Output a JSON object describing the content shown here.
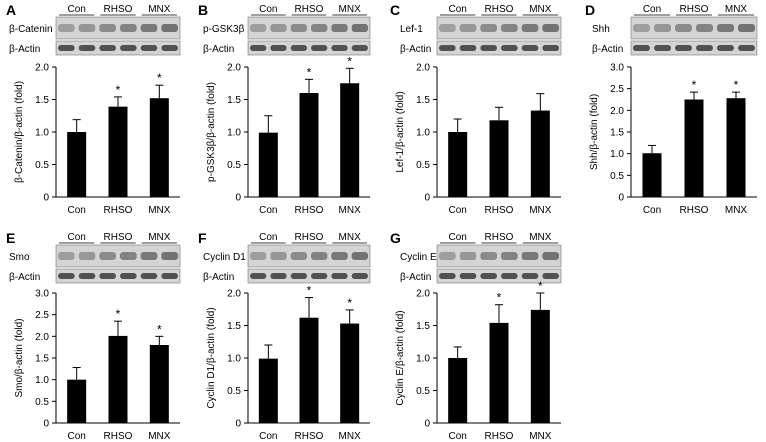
{
  "chart_data": [
    {
      "type": "bar",
      "panel_letter": "A",
      "blot_labels": [
        "β-Catenin",
        "β-Actin"
      ],
      "lane_groups": [
        "Con",
        "RHSO",
        "MNX"
      ],
      "categories": [
        "Con",
        "RHSO",
        "MNX"
      ],
      "values": [
        1.0,
        1.39,
        1.52
      ],
      "errors": [
        0.19,
        0.15,
        0.2
      ],
      "significance": [
        "",
        "*",
        "*"
      ],
      "ylabel": "β-Catenin/β-actin (fold)",
      "ylim": [
        0,
        2.0
      ],
      "yticks": [
        "0",
        "0.5",
        "1.0",
        "1.5",
        "2.0"
      ]
    },
    {
      "type": "bar",
      "panel_letter": "B",
      "blot_labels": [
        "p-GSK3β",
        "β-Actin"
      ],
      "lane_groups": [
        "Con",
        "RHSO",
        "MNX"
      ],
      "categories": [
        "Con",
        "RHSO",
        "MNX"
      ],
      "values": [
        0.99,
        1.6,
        1.75
      ],
      "errors": [
        0.26,
        0.21,
        0.23
      ],
      "significance": [
        "",
        "*",
        "*"
      ],
      "ylabel": "p-GSK3β/β-actin (fold)",
      "ylim": [
        0,
        2.0
      ],
      "yticks": [
        "0",
        "0.5",
        "1.0",
        "1.5",
        "2.0"
      ]
    },
    {
      "type": "bar",
      "panel_letter": "C",
      "blot_labels": [
        "Lef-1",
        "β-Actin"
      ],
      "lane_groups": [
        "Con",
        "RHSO",
        "MNX"
      ],
      "categories": [
        "Con",
        "RHSO",
        "MNX"
      ],
      "values": [
        1.0,
        1.18,
        1.33
      ],
      "errors": [
        0.2,
        0.2,
        0.26
      ],
      "significance": [
        "",
        "",
        ""
      ],
      "ylabel": "Lef-1/β-actin (fold)",
      "ylim": [
        0,
        2.0
      ],
      "yticks": [
        "0",
        "0.5",
        "1.0",
        "1.5",
        "2.0"
      ]
    },
    {
      "type": "bar",
      "panel_letter": "D",
      "blot_labels": [
        "Shh",
        "β-Actin"
      ],
      "lane_groups": [
        "Con",
        "RHSO",
        "MNX"
      ],
      "categories": [
        "Con",
        "RHSO",
        "MNX"
      ],
      "values": [
        1.01,
        2.25,
        2.28
      ],
      "errors": [
        0.18,
        0.17,
        0.14
      ],
      "significance": [
        "",
        "*",
        "*"
      ],
      "ylabel": "Shh/β-actin (fold)",
      "ylim": [
        0,
        3.0
      ],
      "yticks": [
        "0",
        "0.5",
        "1.0",
        "1.5",
        "2.0",
        "2.5",
        "3.0"
      ]
    },
    {
      "type": "bar",
      "panel_letter": "E",
      "blot_labels": [
        "Smo",
        "β-Actin"
      ],
      "lane_groups": [
        "Con",
        "RHSO",
        "MNX"
      ],
      "categories": [
        "Con",
        "RHSO",
        "MNX"
      ],
      "values": [
        1.0,
        2.01,
        1.8
      ],
      "errors": [
        0.28,
        0.34,
        0.2
      ],
      "significance": [
        "",
        "*",
        "*"
      ],
      "ylabel": "Smo/β-actin (fold)",
      "ylim": [
        0,
        3.0
      ],
      "yticks": [
        "0",
        "0.5",
        "1.0",
        "1.5",
        "2.0",
        "2.5",
        "3.0"
      ]
    },
    {
      "type": "bar",
      "panel_letter": "F",
      "blot_labels": [
        "Cyclin D1",
        "β-Actin"
      ],
      "lane_groups": [
        "Con",
        "RHSO",
        "MNX"
      ],
      "categories": [
        "Con",
        "RHSO",
        "MNX"
      ],
      "values": [
        0.99,
        1.62,
        1.53
      ],
      "errors": [
        0.21,
        0.31,
        0.21
      ],
      "significance": [
        "",
        "*",
        "*"
      ],
      "ylabel": "Cyclin D1/β-actin (fold)",
      "ylim": [
        0,
        2.0
      ],
      "yticks": [
        "0",
        "0.5",
        "1.0",
        "1.5",
        "2.0"
      ]
    },
    {
      "type": "bar",
      "panel_letter": "G",
      "blot_labels": [
        "Cyclin E",
        "β-Actin"
      ],
      "lane_groups": [
        "Con",
        "RHSO",
        "MNX"
      ],
      "categories": [
        "Con",
        "RHSO",
        "MNX"
      ],
      "values": [
        1.0,
        1.54,
        1.74
      ],
      "errors": [
        0.17,
        0.28,
        0.26
      ],
      "significance": [
        "",
        "*",
        "*"
      ],
      "ylabel": "Cyclin E/β-actin (fold)",
      "ylim": [
        0,
        2.0
      ],
      "yticks": [
        "0",
        "0.5",
        "1.0",
        "1.5",
        "2.0"
      ]
    }
  ],
  "colors": {
    "bar": "#000000",
    "axis": "#000000",
    "blot_background": "#d4d4d4",
    "blot_band": "#3a3a3a"
  }
}
